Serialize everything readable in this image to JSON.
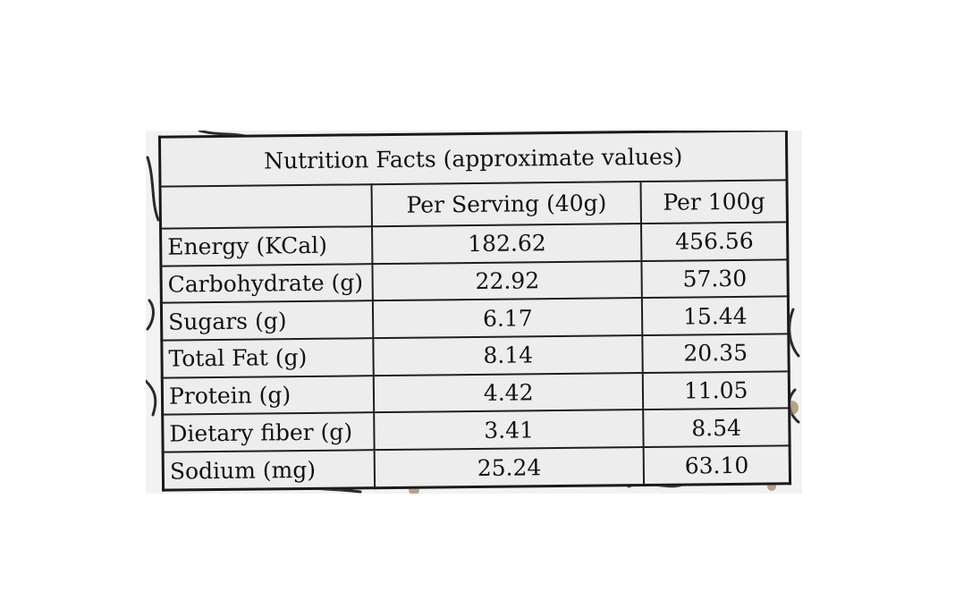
{
  "table": {
    "title": "Nutrition Facts (approximate values)",
    "headers": [
      "",
      "Per Serving (40g)",
      "Per 100g"
    ],
    "rows": [
      {
        "label": "Energy (KCal)",
        "per_serving": "182.62",
        "per_100g": "456.56"
      },
      {
        "label": "Carbohydrate (g)",
        "per_serving": "22.92",
        "per_100g": "57.30"
      },
      {
        "label": "Sugars (g)",
        "per_serving": "6.17",
        "per_100g": "15.44"
      },
      {
        "label": "Total Fat (g)",
        "per_serving": "8.14",
        "per_100g": "20.35"
      },
      {
        "label": "Protein (g)",
        "per_serving": "4.42",
        "per_100g": "11.05"
      },
      {
        "label": "Dietary fiber (g)",
        "per_serving": "3.41",
        "per_100g": "8.54"
      },
      {
        "label": "Sodium (mg)",
        "per_serving": "25.24",
        "per_100g": "63.10"
      }
    ]
  }
}
